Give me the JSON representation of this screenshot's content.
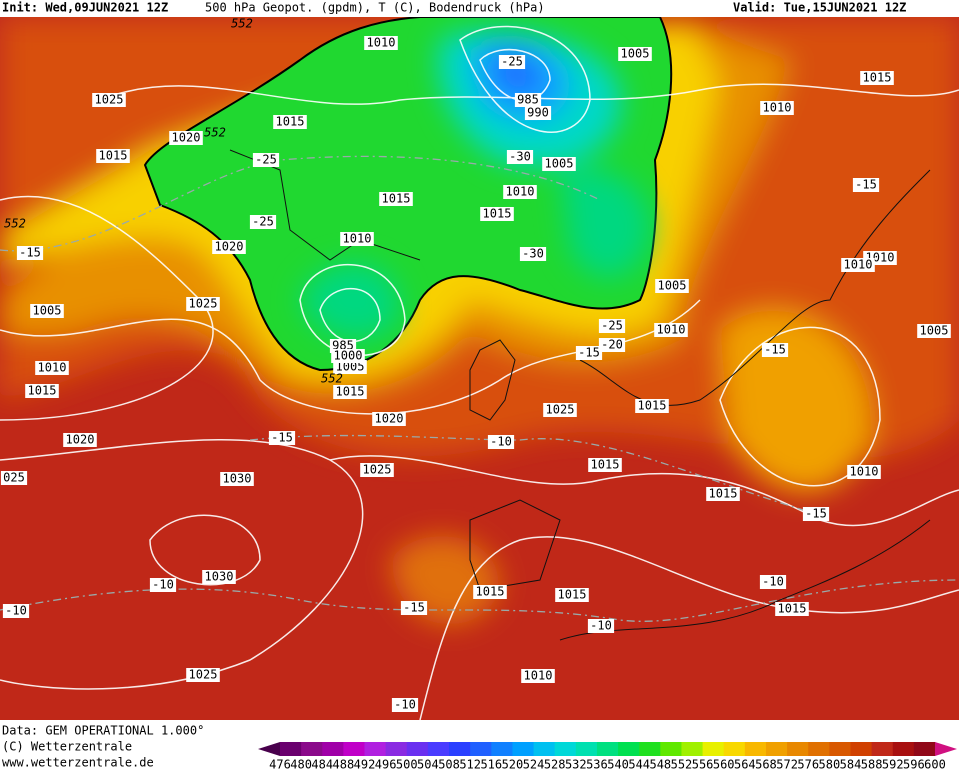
{
  "header": {
    "init": "Init: Wed,09JUN2021 12Z",
    "title": "500 hPa Geopot. (gpdm), T (C), Bodendruck (hPa)",
    "valid": "Valid: Tue,15JUN2021 12Z"
  },
  "footer": {
    "data": "Data: GEM OPERATIONAL 1.000°",
    "copyright": "(C) Wetterzentrale",
    "url": "www.wetterzentrale.de"
  },
  "legend": {
    "labels": [
      476,
      480,
      484,
      488,
      492,
      496,
      500,
      504,
      508,
      512,
      516,
      520,
      524,
      528,
      532,
      536,
      540,
      544,
      548,
      552,
      556,
      560,
      564,
      568,
      572,
      576,
      580,
      584,
      588,
      592,
      596,
      600
    ]
  },
  "map_labels": [
    "1010",
    "1005",
    "1015",
    "1025",
    "1015",
    "1010",
    "1020",
    "1015",
    "1005",
    "1010",
    "-30",
    "-25",
    "-15",
    "1015",
    "1015",
    "-25",
    "1010",
    "1020",
    "-15",
    "-30",
    "1010",
    "1010",
    "1005",
    "1025",
    "1005",
    "-25",
    "1010",
    "1005",
    "-20",
    "-15",
    "-15",
    "1010",
    "1005",
    "1015",
    "1015",
    "1025",
    "1015",
    "1020",
    "-15",
    "-10",
    "1020",
    "1025",
    "1015",
    "1010",
    "1030",
    "025",
    "1015",
    "-15",
    "1030",
    "-10",
    "-10",
    "1015",
    "1015",
    "-15",
    "1015",
    "-10",
    "-10",
    "1025",
    "1010",
    "-10",
    "-25",
    "985",
    "990",
    "985",
    "1000"
  ],
  "contour_labels": [
    "552",
    "552",
    "552",
    "552"
  ]
}
